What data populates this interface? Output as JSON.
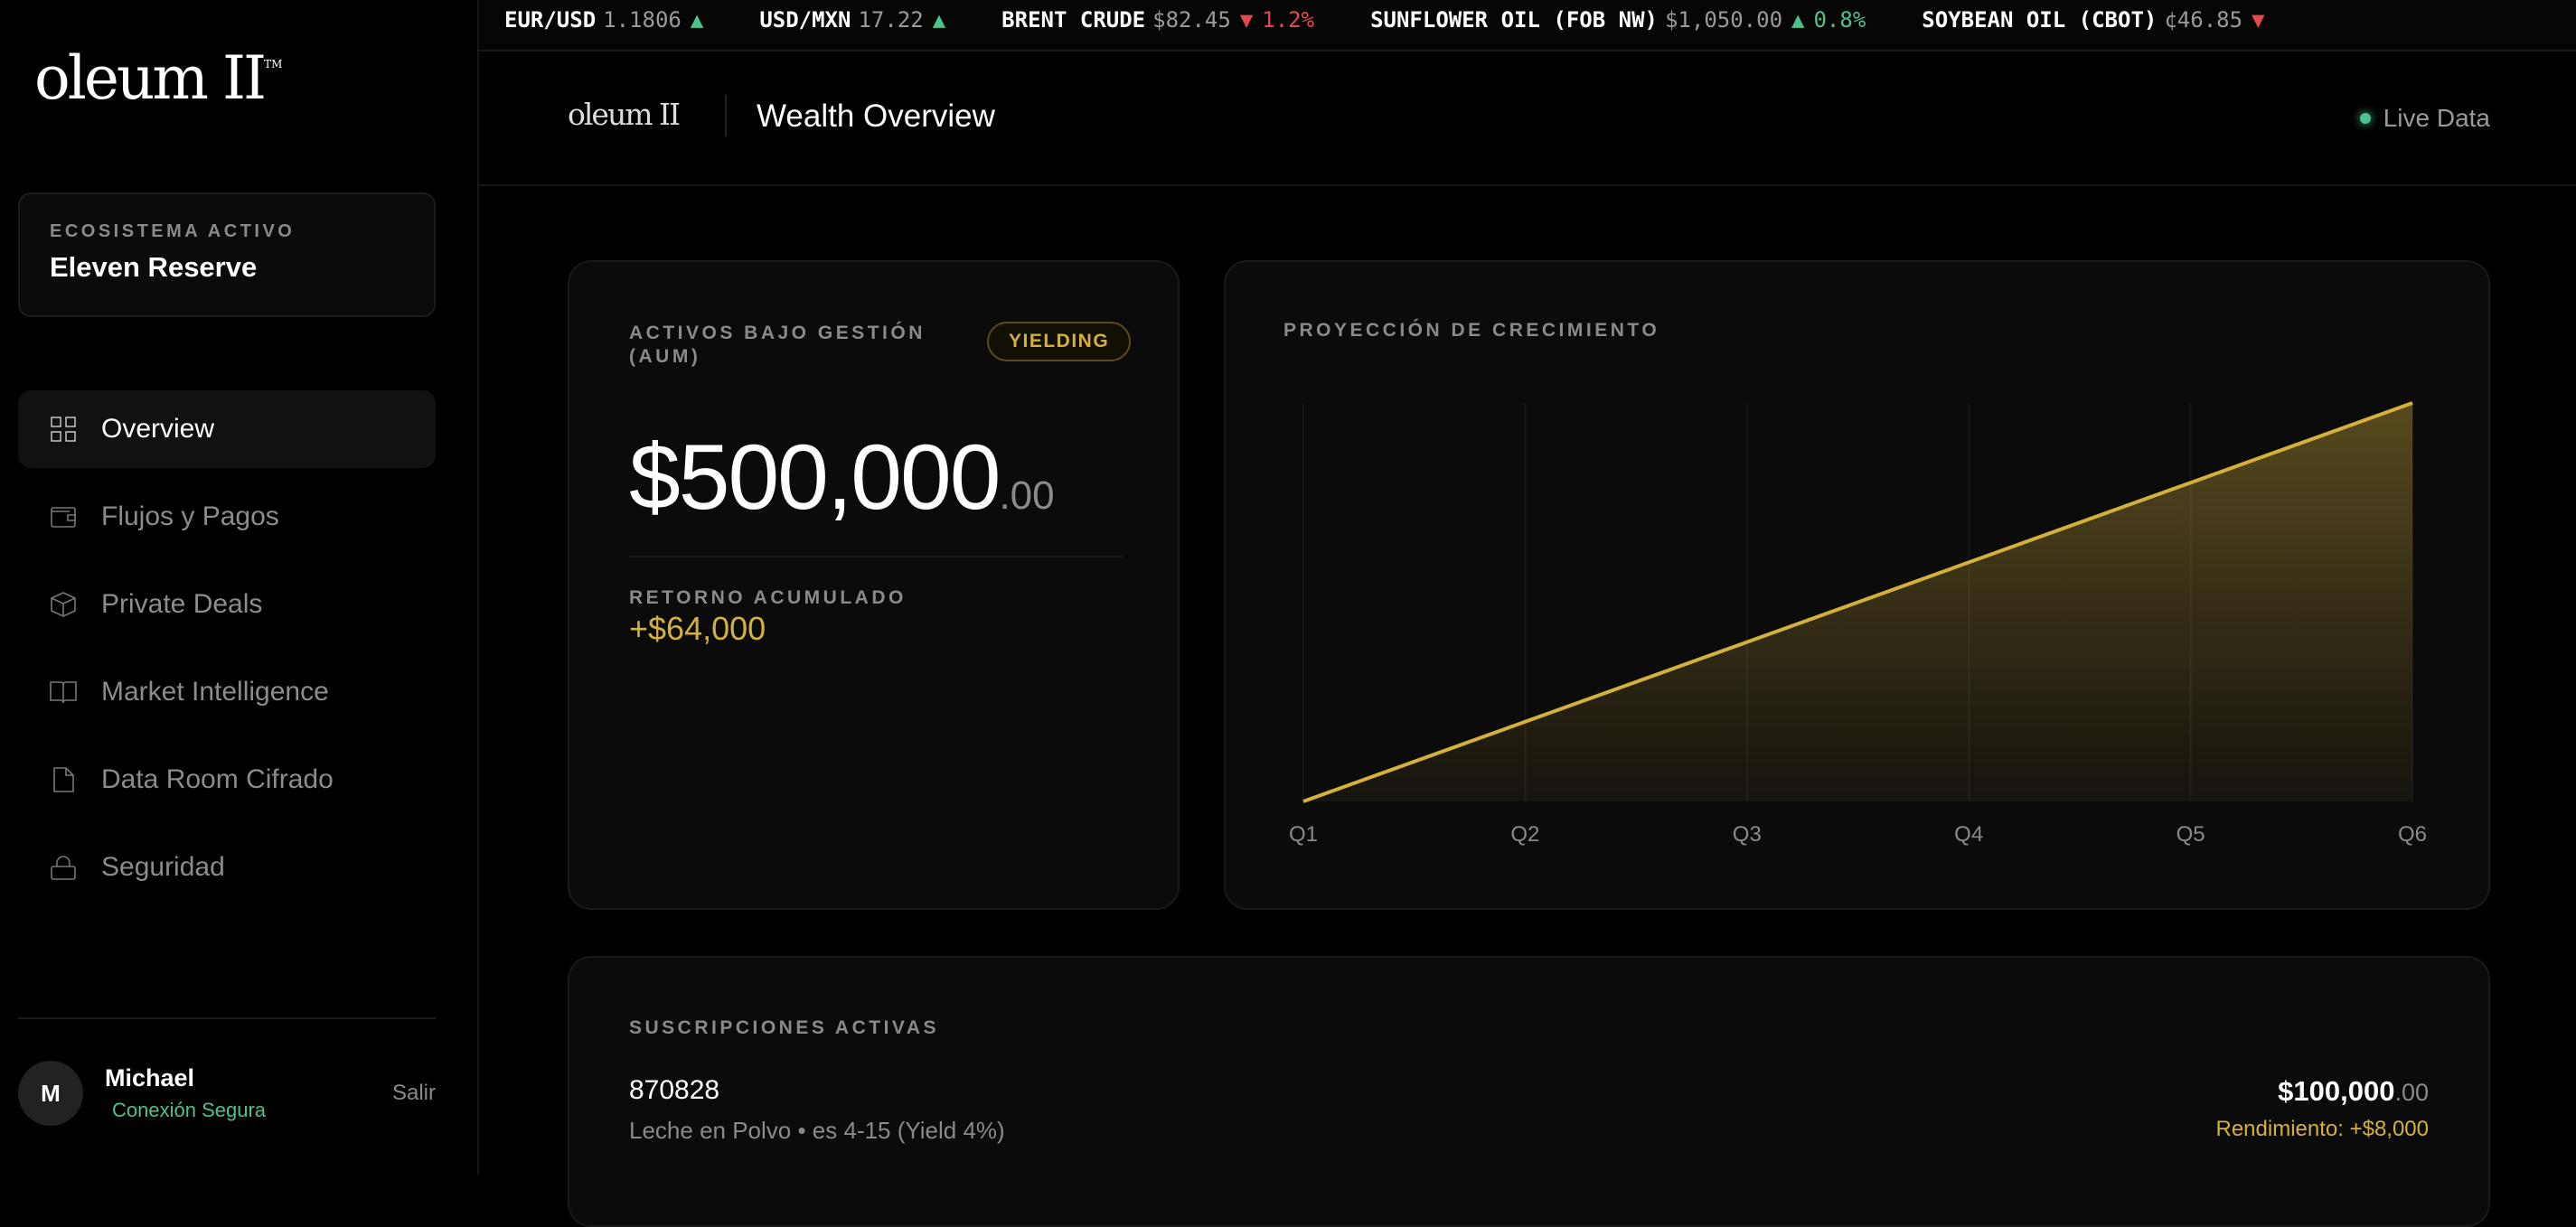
{
  "ticker": [
    {
      "symbol": "EUR/USD",
      "price": "1.1806",
      "dir": "up",
      "change": ""
    },
    {
      "symbol": "USD/MXN",
      "price": "17.22",
      "dir": "up",
      "change": ""
    },
    {
      "symbol": "BRENT CRUDE",
      "price": "$82.45",
      "dir": "down",
      "change": "1.2%"
    },
    {
      "symbol": "SUNFLOWER OIL (FOB NW)",
      "price": "$1,050.00",
      "dir": "up",
      "change": "0.8%"
    },
    {
      "symbol": "SOYBEAN OIL (CBOT)",
      "price": "¢46.85",
      "dir": "down",
      "change": ""
    }
  ],
  "sidebar": {
    "logo": "oleum II",
    "ecosystem_label": "ECOSISTEMA ACTIVO",
    "ecosystem_value": "Eleven Reserve",
    "items": [
      {
        "label": "Overview",
        "icon": "grid-icon",
        "active": true
      },
      {
        "label": "Flujos y Pagos",
        "icon": "wallet-icon"
      },
      {
        "label": "Private Deals",
        "icon": "box-icon"
      },
      {
        "label": "Market Intelligence",
        "icon": "book-icon"
      },
      {
        "label": "Data Room Cifrado",
        "icon": "file-icon"
      },
      {
        "label": "Seguridad",
        "icon": "lock-icon"
      }
    ],
    "user": {
      "initial": "M",
      "name": "Michael",
      "status": "Conexión Segura",
      "logout": "Salir"
    }
  },
  "header": {
    "logo": "oleum II",
    "title": "Wealth Overview",
    "live": "Live Data"
  },
  "aum": {
    "label": "ACTIVOS BAJO GESTIÓN (AUM)",
    "badge": "YIELDING",
    "value": "$500,000",
    "cents": ".00",
    "return_label": "RETORNO ACUMULADO",
    "return_value": "+$64,000"
  },
  "chart_data": {
    "type": "area",
    "title": "PROYECCIÓN DE CRECIMIENTO",
    "categories": [
      "Q1",
      "Q2",
      "Q3",
      "Q4",
      "Q5",
      "Q6"
    ],
    "values": [
      0,
      20,
      40,
      60,
      80,
      100
    ],
    "ylim": [
      0,
      100
    ],
    "grid": "vertical",
    "color": "#d4b13c"
  },
  "subscriptions": {
    "label": "SUSCRIPCIONES ACTIVAS",
    "items": [
      {
        "id": "870828",
        "desc": "Leche en Polvo • es 4-15 (Yield 4%)",
        "amount": "$100,000",
        "cents": ".00",
        "yield": "Rendimiento: +$8,000"
      }
    ]
  },
  "colors": {
    "accent": "#d4b13c",
    "positive": "#4cc38a",
    "negative": "#e5484d",
    "background": "#000000",
    "card": "#0b0b0b"
  }
}
